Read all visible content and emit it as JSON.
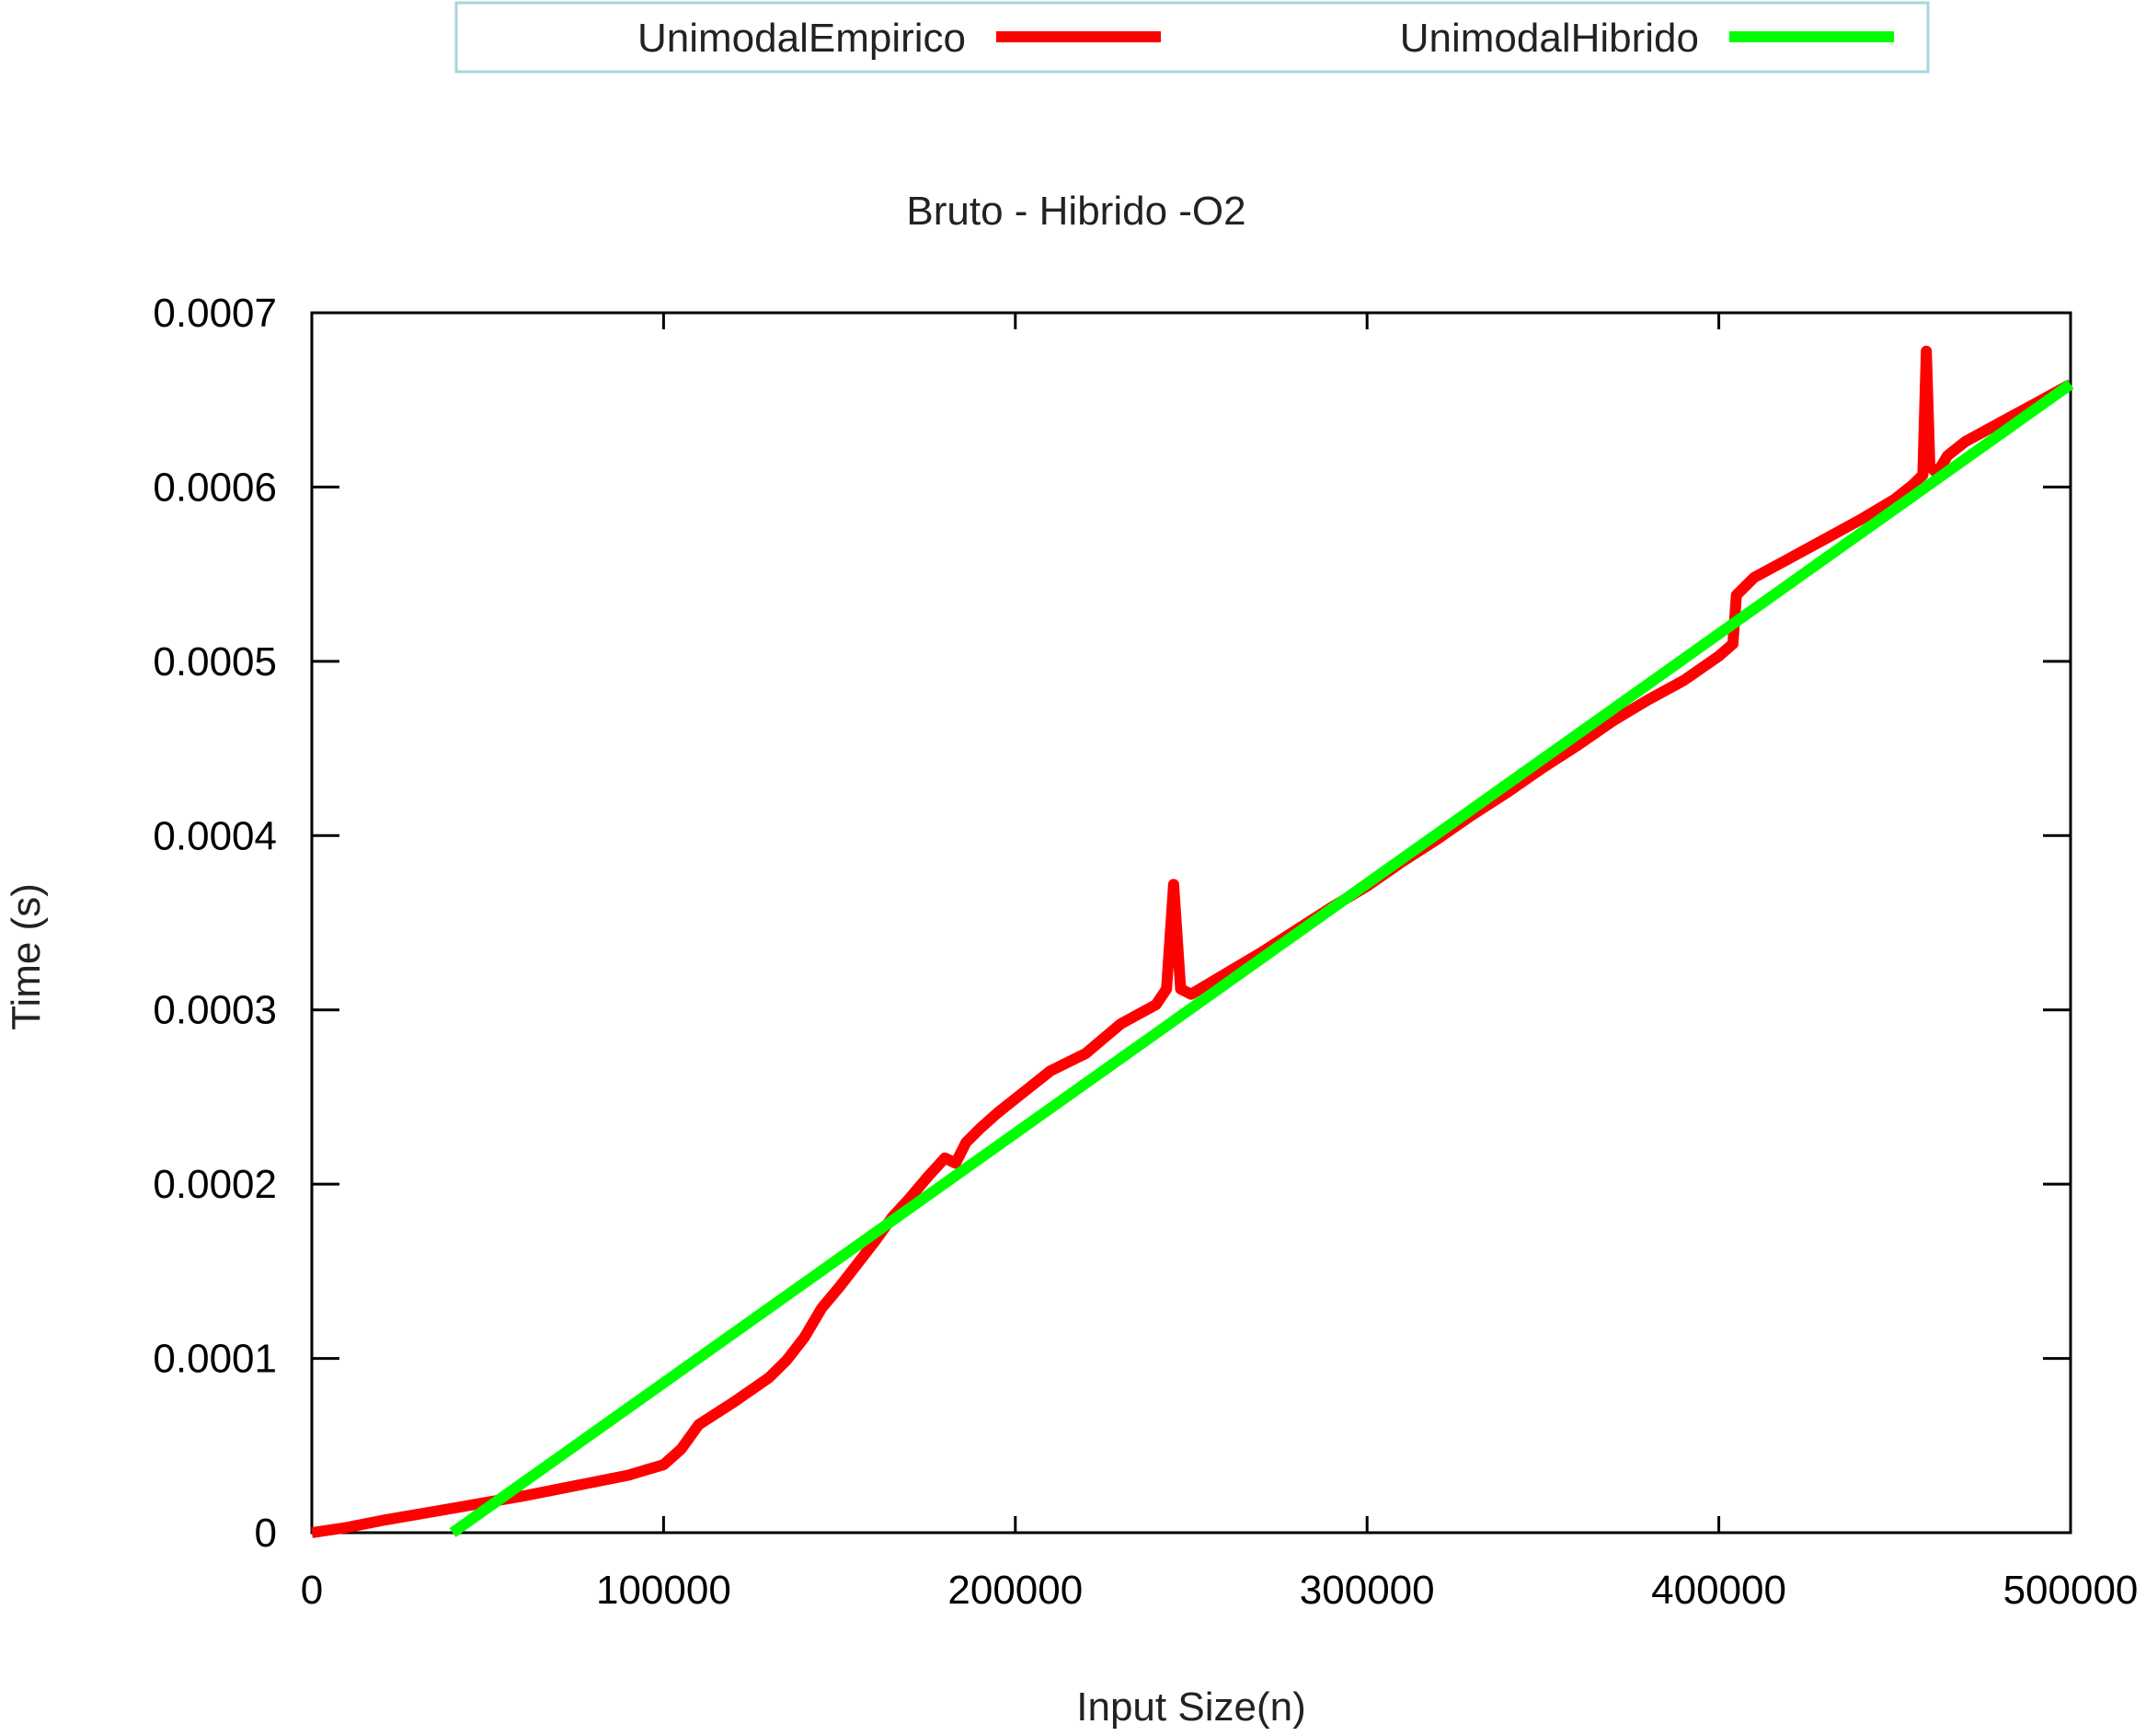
{
  "chart_data": {
    "type": "line",
    "title": "Bruto - Hibrido -O2",
    "xlabel": "Input Size(n)",
    "ylabel": "Time (s)",
    "xlim": [
      0,
      500000
    ],
    "ylim": [
      0,
      0.0007
    ],
    "xticks": [
      "0",
      "100000",
      "200000",
      "300000",
      "400000",
      "500000"
    ],
    "yticks": [
      "0",
      "0.0001",
      "0.0002",
      "0.0003",
      "0.0004",
      "0.0005",
      "0.0006",
      "0.0007"
    ],
    "grid": false,
    "legend_position": "top",
    "series": [
      {
        "name": "UnimodalEmpirico",
        "color": "#ff0000",
        "x": [
          0,
          10000,
          20000,
          40000,
          60000,
          80000,
          90000,
          95000,
          100000,
          105000,
          110000,
          120000,
          130000,
          135000,
          140000,
          145000,
          150000,
          155000,
          160000,
          165000,
          170000,
          175000,
          180000,
          183000,
          186000,
          190000,
          195000,
          200000,
          205000,
          210000,
          220000,
          230000,
          240000,
          243000,
          245000,
          247000,
          250000,
          260000,
          270000,
          280000,
          290000,
          300000,
          310000,
          320000,
          330000,
          340000,
          350000,
          360000,
          370000,
          380000,
          390000,
          400000,
          404000,
          405000,
          406000,
          410000,
          420000,
          430000,
          440000,
          450000,
          455000,
          458000,
          459000,
          460000,
          462000,
          465000,
          470000,
          480000,
          490000,
          500000
        ],
        "y": [
          0,
          3e-06,
          7e-06,
          1.4e-05,
          2.1e-05,
          2.9e-05,
          3.3e-05,
          3.6e-05,
          3.9e-05,
          4.8e-05,
          6.2e-05,
          7.5e-05,
          8.9e-05,
          9.9e-05,
          0.000112,
          0.000129,
          0.000141,
          0.000154,
          0.000167,
          0.000181,
          0.000192,
          0.000204,
          0.000215,
          0.000212,
          0.000224,
          0.000232,
          0.000241,
          0.000249,
          0.000257,
          0.000265,
          0.000275,
          0.000292,
          0.000303,
          0.000312,
          0.000372,
          0.000312,
          0.000309,
          0.000321,
          0.000333,
          0.000346,
          0.000359,
          0.000371,
          0.000385,
          0.000398,
          0.000412,
          0.000425,
          0.000439,
          0.000452,
          0.000466,
          0.000478,
          0.000489,
          0.000503,
          0.00051,
          0.000538,
          0.00054,
          0.000548,
          0.000559,
          0.00057,
          0.000581,
          0.000593,
          0.000601,
          0.000607,
          0.000678,
          0.000612,
          0.000608,
          0.000618,
          0.000626,
          0.000637,
          0.000648,
          0.000659
        ]
      },
      {
        "name": "UnimodalHibrido",
        "color": "#00ff00",
        "x": [
          40000,
          500000
        ],
        "y": [
          0,
          0.000659
        ]
      }
    ]
  }
}
